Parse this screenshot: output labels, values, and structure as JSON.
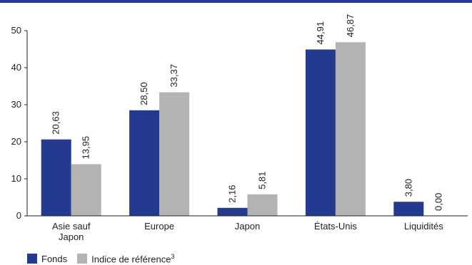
{
  "chart_data": {
    "type": "bar",
    "categories": [
      [
        "Asie sauf",
        "Japon"
      ],
      [
        "Europe"
      ],
      [
        "Japon"
      ],
      [
        "États-Unis"
      ],
      [
        "Liquidités"
      ]
    ],
    "series": [
      {
        "name": "Fonds",
        "values": [
          20.63,
          28.5,
          2.16,
          44.91,
          3.8
        ],
        "labels": [
          "20,63",
          "28,50",
          "2,16",
          "44,91",
          "3,80"
        ],
        "color": "#233a8e"
      },
      {
        "name": "Indice de référence",
        "superscript": "3",
        "values": [
          13.95,
          33.37,
          5.81,
          46.87,
          0.0
        ],
        "labels": [
          "13,95",
          "33,37",
          "5,81",
          "46,87",
          "0,00"
        ],
        "color": "#b3b3b3"
      }
    ],
    "ylim": [
      0,
      50
    ],
    "yticks": [
      0,
      10,
      20,
      30,
      40,
      50
    ],
    "legend_position": "bottom-left",
    "grid": false
  },
  "colors": {
    "accent_rule": "#233a8e"
  }
}
